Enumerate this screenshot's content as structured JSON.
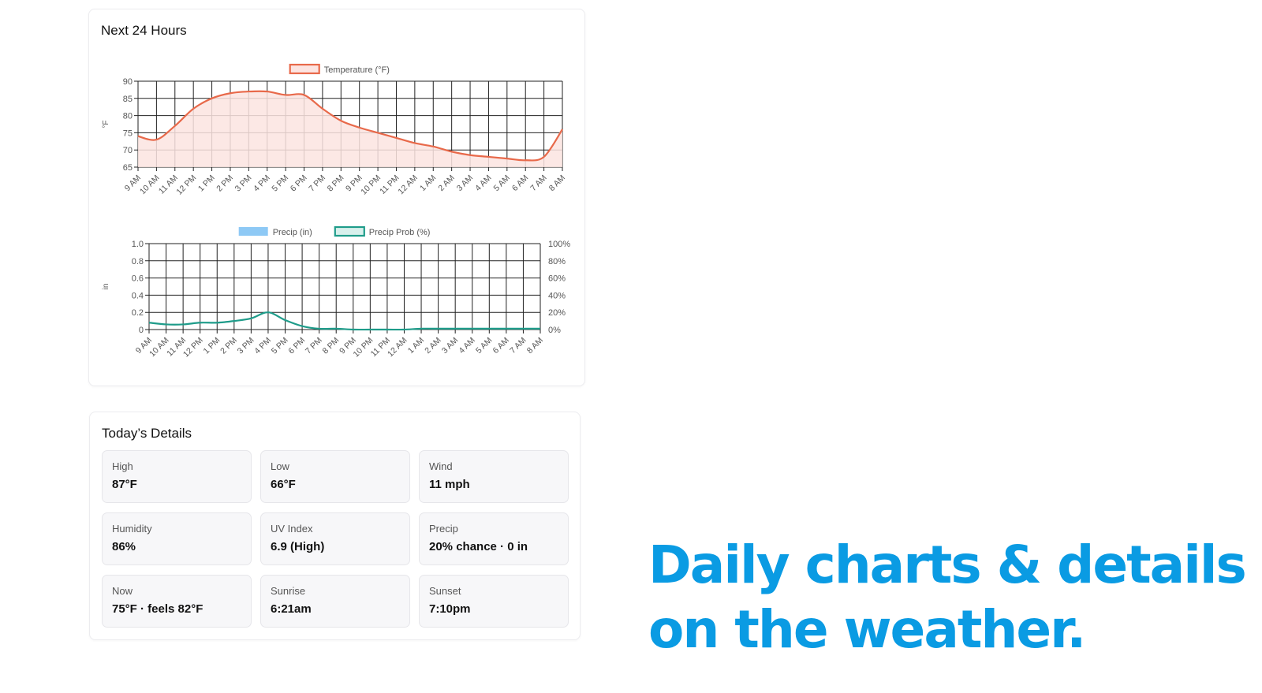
{
  "hourly_card": {
    "title": "Next 24 Hours"
  },
  "chart_data": [
    {
      "type": "line",
      "title": "",
      "xlabel": "",
      "ylabel": "°F",
      "legend": "top-center",
      "grid": true,
      "categories": [
        "9 AM",
        "10 AM",
        "11 AM",
        "12 PM",
        "1 PM",
        "2 PM",
        "3 PM",
        "4 PM",
        "5 PM",
        "6 PM",
        "7 PM",
        "8 PM",
        "9 PM",
        "10 PM",
        "11 PM",
        "12 AM",
        "1 AM",
        "2 AM",
        "3 AM",
        "4 AM",
        "5 AM",
        "6 AM",
        "7 AM",
        "8 AM"
      ],
      "ylim": [
        65,
        90
      ],
      "yticks": [
        65,
        70,
        75,
        80,
        85,
        90
      ],
      "series": [
        {
          "name": "Temperature (°F)",
          "color": "#e8694a",
          "fill": "#fce4e1",
          "values": [
            74,
            73,
            77,
            82,
            85,
            86.5,
            87,
            87,
            86,
            86,
            82,
            78.5,
            76.5,
            75,
            73.5,
            72,
            71,
            69.5,
            68.5,
            68,
            67.5,
            67,
            68,
            76
          ]
        }
      ]
    },
    {
      "type": "line",
      "title": "",
      "xlabel": "",
      "ylabel": "in",
      "legend": "top-center",
      "grid": true,
      "categories": [
        "9 AM",
        "10 AM",
        "11 AM",
        "12 PM",
        "1 PM",
        "2 PM",
        "3 PM",
        "4 PM",
        "5 PM",
        "6 PM",
        "7 PM",
        "8 PM",
        "9 PM",
        "10 PM",
        "11 PM",
        "12 AM",
        "1 AM",
        "2 AM",
        "3 AM",
        "4 AM",
        "5 AM",
        "6 AM",
        "7 AM",
        "8 AM"
      ],
      "ylim": [
        0,
        1.0
      ],
      "yticks": [
        "0",
        "0.2",
        "0.4",
        "0.6",
        "0.8",
        "1.0"
      ],
      "y2ticks": [
        "0%",
        "20%",
        "40%",
        "60%",
        "80%",
        "100%"
      ],
      "y2lim": [
        0,
        100
      ],
      "series": [
        {
          "name": "Precip (in)",
          "axis": "left",
          "color": "#8ec9f5",
          "values": [
            0,
            0,
            0,
            0,
            0,
            0,
            0,
            0,
            0,
            0,
            0,
            0,
            0,
            0,
            0,
            0,
            0,
            0,
            0,
            0,
            0,
            0,
            0,
            0
          ]
        },
        {
          "name": "Precip Prob (%)",
          "axis": "right",
          "color": "#1f9c8a",
          "values": [
            8,
            6,
            6,
            8,
            8,
            10,
            13,
            20,
            11,
            4,
            1,
            1,
            0,
            0,
            0,
            0,
            1,
            1,
            1,
            1,
            1,
            1,
            1,
            1
          ]
        }
      ]
    }
  ],
  "details_card": {
    "title": "Today’s Details",
    "tiles": [
      {
        "label": "High",
        "value": "87°F"
      },
      {
        "label": "Low",
        "value": "66°F"
      },
      {
        "label": "Wind",
        "value": "11 mph"
      },
      {
        "label": "Humidity",
        "value": "86%"
      },
      {
        "label": "UV Index",
        "value": "6.9 (High)"
      },
      {
        "label": "Precip",
        "value": "20% chance · 0 in"
      },
      {
        "label": "Now",
        "value": "75°F · feels 82°F"
      },
      {
        "label": "Sunrise",
        "value": "6:21am"
      },
      {
        "label": "Sunset",
        "value": "7:10pm"
      }
    ]
  },
  "promo": {
    "line1": "Daily charts & details",
    "line2": "on the weather."
  }
}
